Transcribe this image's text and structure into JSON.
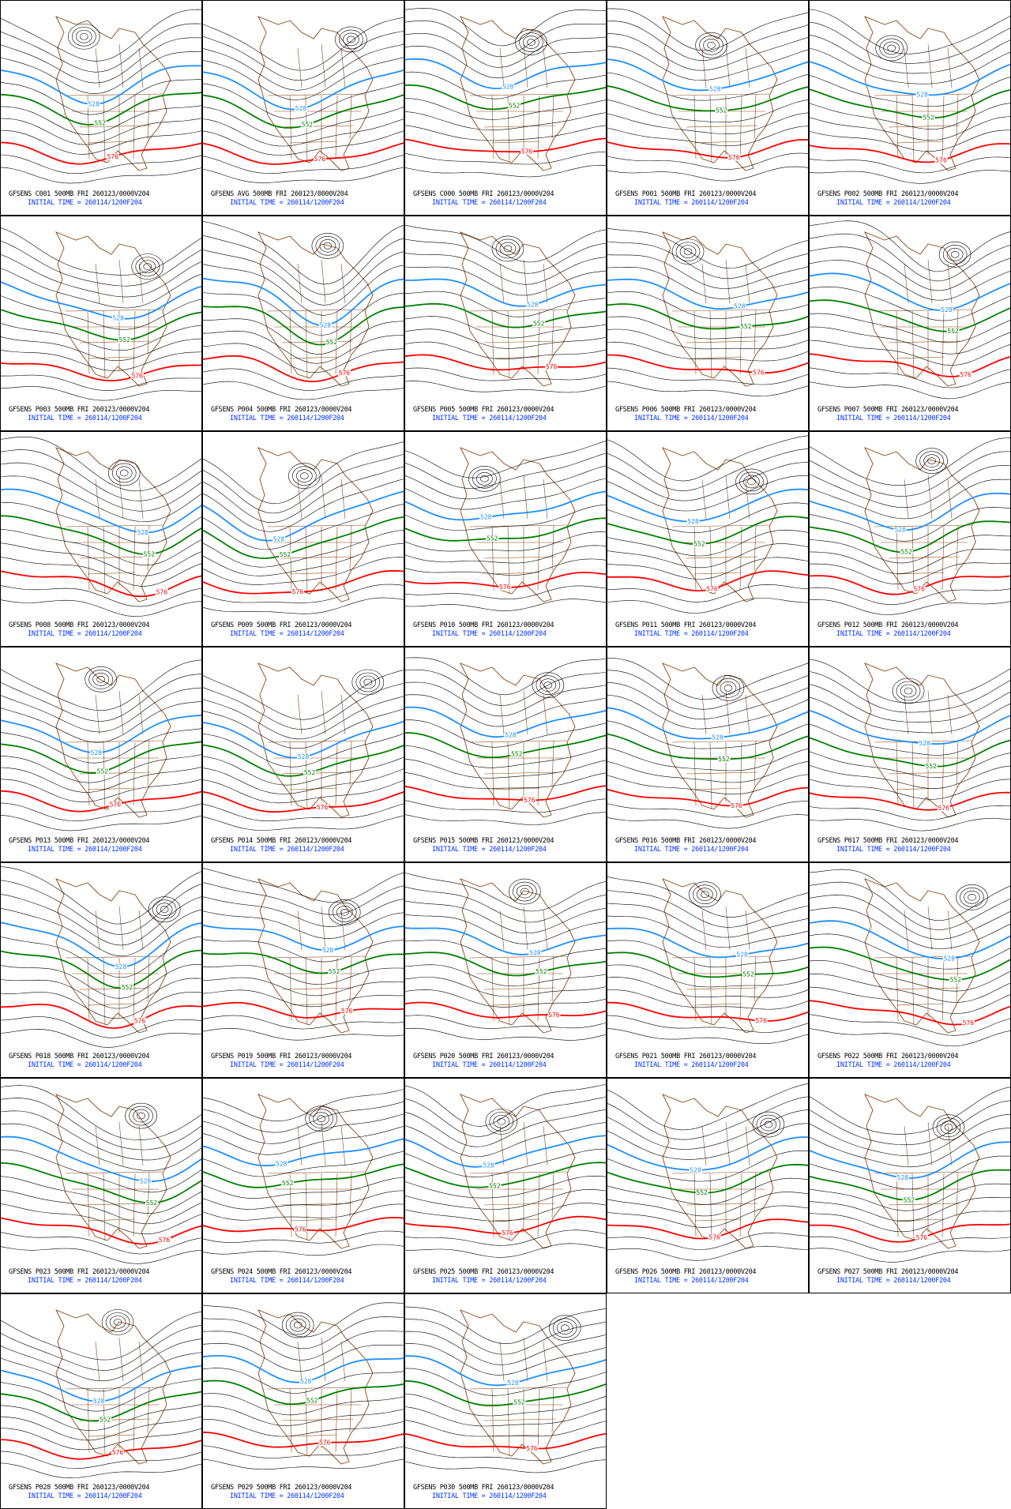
{
  "panels": [
    {
      "title": "GFSENS C001 500MB FRI 260123/0000V204",
      "initial_time": "INITIAL TIME = 260114/1200F204",
      "contour_labels": [
        "528",
        "552",
        "576"
      ]
    },
    {
      "title": "GFSENS AVG 500MB FRI 260123/0000V204",
      "initial_time": "INITIAL TIME = 260114/1200F204",
      "contour_labels": [
        "528",
        "552",
        "576"
      ]
    },
    {
      "title": "GFSENS C000 500MB FRI 260123/0000V204",
      "initial_time": "INITIAL TIME = 260114/1200F204",
      "contour_labels": [
        "528",
        "552",
        "576"
      ]
    },
    {
      "title": "GFSENS P001 500MB FRI 260123/0000V204",
      "initial_time": "INITIAL TIME = 260114/1200F204",
      "contour_labels": [
        "528",
        "552",
        "576"
      ]
    },
    {
      "title": "GFSENS P002 500MB FRI 260123/0000V204",
      "initial_time": "INITIAL TIME = 260114/1200F204",
      "contour_labels": [
        "528",
        "552",
        "576"
      ]
    },
    {
      "title": "GFSENS P003 500MB FRI 260123/0000V204",
      "initial_time": "INITIAL TIME = 260114/1200F204",
      "contour_labels": [
        "528",
        "552",
        "576"
      ]
    },
    {
      "title": "GFSENS P004 500MB FRI 260123/0000V204",
      "initial_time": "INITIAL TIME = 260114/1200F204",
      "contour_labels": [
        "528",
        "552",
        "576"
      ]
    },
    {
      "title": "GFSENS P005 500MB FRI 260123/0000V204",
      "initial_time": "INITIAL TIME = 260114/1200F204",
      "contour_labels": [
        "528",
        "552",
        "576"
      ]
    },
    {
      "title": "GFSENS P006 500MB FRI 260123/0000V204",
      "initial_time": "INITIAL TIME = 260114/1200F204",
      "contour_labels": [
        "528",
        "552",
        "576"
      ]
    },
    {
      "title": "GFSENS P007 500MB FRI 260123/0000V204",
      "initial_time": "INITIAL TIME = 260114/1200F204",
      "contour_labels": [
        "528",
        "552",
        "576"
      ]
    },
    {
      "title": "GFSENS P008 500MB FRI 260123/0000V204",
      "initial_time": "INITIAL TIME = 260114/1200F204",
      "contour_labels": [
        "528",
        "552",
        "576"
      ]
    },
    {
      "title": "GFSENS P009 500MB FRI 260123/0000V204",
      "initial_time": "INITIAL TIME = 260114/1200F204",
      "contour_labels": [
        "528",
        "552",
        "576"
      ]
    },
    {
      "title": "GFSENS P010 500MB FRI 260123/0000V204",
      "initial_time": "INITIAL TIME = 260114/1200F204",
      "contour_labels": [
        "528",
        "552",
        "576"
      ]
    },
    {
      "title": "GFSENS P011 500MB FRI 260123/0000V204",
      "initial_time": "INITIAL TIME = 260114/1200F204",
      "contour_labels": [
        "528",
        "552",
        "576"
      ]
    },
    {
      "title": "GFSENS P012 500MB FRI 260123/0000V204",
      "initial_time": "INITIAL TIME = 260114/1200F204",
      "contour_labels": [
        "528",
        "552",
        "576"
      ]
    },
    {
      "title": "GFSENS P013 500MB FRI 260123/0000V204",
      "initial_time": "INITIAL TIME = 260114/1200F204",
      "contour_labels": [
        "528",
        "552",
        "576"
      ]
    },
    {
      "title": "GFSENS P014 500MB FRI 260123/0000V204",
      "initial_time": "INITIAL TIME = 260114/1200F204",
      "contour_labels": [
        "528",
        "552",
        "576"
      ]
    },
    {
      "title": "GFSENS P015 500MB FRI 260123/0000V204",
      "initial_time": "INITIAL TIME = 260114/1200F204",
      "contour_labels": [
        "528",
        "552",
        "576"
      ]
    },
    {
      "title": "GFSENS P016 500MB FRI 260123/0000V204",
      "initial_time": "INITIAL TIME = 260114/1200F204",
      "contour_labels": [
        "528",
        "552",
        "576"
      ]
    },
    {
      "title": "GFSENS P017 500MB FRI 260123/0000V204",
      "initial_time": "INITIAL TIME = 260114/1200F204",
      "contour_labels": [
        "528",
        "552",
        "576"
      ]
    },
    {
      "title": "GFSENS P018 500MB FRI 260123/0000V204",
      "initial_time": "INITIAL TIME = 260114/1200F204",
      "contour_labels": [
        "528",
        "552",
        "576"
      ]
    },
    {
      "title": "GFSENS P019 500MB FRI 260123/0000V204",
      "initial_time": "INITIAL TIME = 260114/1200F204",
      "contour_labels": [
        "528",
        "552",
        "576"
      ]
    },
    {
      "title": "GFSENS P020 500MB FRI 260123/0000V204",
      "initial_time": "INITIAL TIME = 260114/1200F204",
      "contour_labels": [
        "528",
        "552",
        "576"
      ]
    },
    {
      "title": "GFSENS P021 500MB FRI 260123/0000V204",
      "initial_time": "INITIAL TIME = 260114/1200F204",
      "contour_labels": [
        "528",
        "552",
        "576"
      ]
    },
    {
      "title": "GFSENS P022 500MB FRI 260123/0000V204",
      "initial_time": "INITIAL TIME = 260114/1200F204",
      "contour_labels": [
        "528",
        "552",
        "576"
      ]
    },
    {
      "title": "GFSENS P023 500MB FRI 260123/0000V204",
      "initial_time": "INITIAL TIME = 260114/1200F204",
      "contour_labels": [
        "528",
        "552",
        "576"
      ]
    },
    {
      "title": "GFSENS P024 500MB FRI 260123/0000V204",
      "initial_time": "INITIAL TIME = 260114/1200F204",
      "contour_labels": [
        "528",
        "552",
        "576"
      ]
    },
    {
      "title": "GFSENS P025 500MB FRI 260123/0000V204",
      "initial_time": "INITIAL TIME = 260114/1200F204",
      "contour_labels": [
        "528",
        "552",
        "576"
      ]
    },
    {
      "title": "GFSENS P026 500MB FRI 260123/0000V204",
      "initial_time": "INITIAL TIME = 260114/1200F204",
      "contour_labels": [
        "528",
        "552",
        "576"
      ]
    },
    {
      "title": "GFSENS P027 500MB FRI 260123/0000V204",
      "initial_time": "INITIAL TIME = 260114/1200F204",
      "contour_labels": [
        "528",
        "552",
        "576"
      ]
    },
    {
      "title": "GFSENS P028 500MB FRI 260123/0000V204",
      "initial_time": "INITIAL TIME = 260114/1200F204",
      "contour_labels": [
        "528",
        "552",
        "576"
      ]
    },
    {
      "title": "GFSENS P029 500MB FRI 260123/0000V204",
      "initial_time": "INITIAL TIME = 260114/1200F204",
      "contour_labels": [
        "528",
        "552",
        "576"
      ]
    },
    {
      "title": "GFSENS P030 500MB FRI 260123/0000V204",
      "initial_time": "INITIAL TIME = 260114/1200F204",
      "contour_labels": [
        "528",
        "552",
        "576"
      ]
    }
  ]
}
